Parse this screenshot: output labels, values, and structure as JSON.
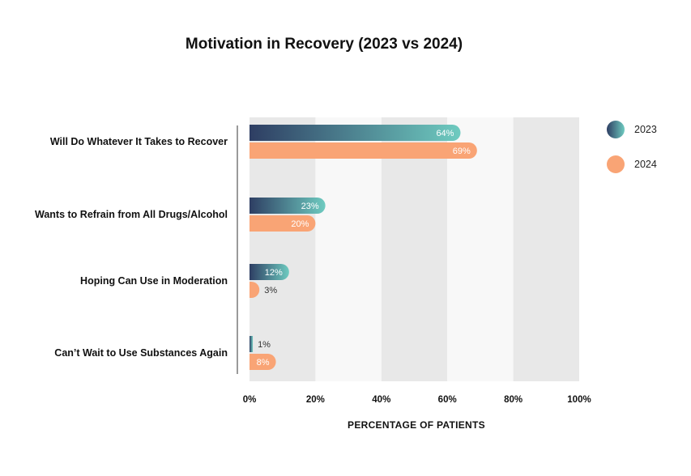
{
  "chart_data": {
    "type": "bar",
    "orientation": "horizontal",
    "title": "Motivation in Recovery (2023 vs 2024)",
    "xlabel": "PERCENTAGE OF PATIENTS",
    "ylabel": "",
    "xlim": [
      0,
      100
    ],
    "x_ticks": [
      "0%",
      "20%",
      "40%",
      "60%",
      "80%",
      "100%"
    ],
    "categories": [
      "Will Do Whatever It Takes to Recover",
      "Wants to Refrain from All Drugs/Alcohol",
      "Hoping Can Use in Moderation",
      "Can’t Wait to Use Substances Again"
    ],
    "series": [
      {
        "name": "2023",
        "values": [
          64,
          23,
          12,
          1
        ],
        "labels": [
          "64%",
          "23%",
          "12%",
          "1%"
        ],
        "color_start": "#2E3E63",
        "color_end": "#6ECBC0"
      },
      {
        "name": "2024",
        "values": [
          69,
          20,
          3,
          8
        ],
        "labels": [
          "69%",
          "20%",
          "3%",
          "8%"
        ],
        "color": "#F9A475"
      }
    ],
    "legend_position": "top-right",
    "grid": "alternating vertical bands"
  }
}
